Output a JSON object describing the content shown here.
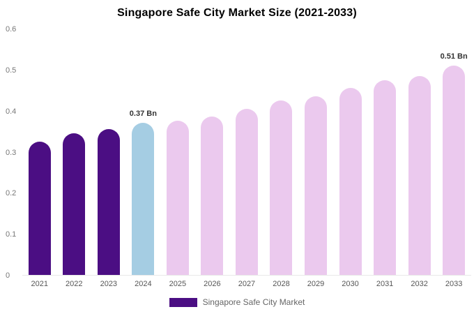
{
  "title": "Singapore Safe City Market Size (2021-2033)",
  "chart_data": {
    "type": "bar",
    "title": "Singapore Safe City Market Size (2021-2033)",
    "xlabel": "",
    "ylabel": "",
    "categories": [
      "2021",
      "2022",
      "2023",
      "2024",
      "2025",
      "2026",
      "2027",
      "2028",
      "2029",
      "2030",
      "2031",
      "2032",
      "2033"
    ],
    "values": [
      0.325,
      0.345,
      0.355,
      0.37,
      0.375,
      0.385,
      0.405,
      0.425,
      0.435,
      0.455,
      0.475,
      0.485,
      0.51
    ],
    "bar_colors": [
      "#4b0e83",
      "#4b0e83",
      "#4b0e83",
      "#a5cde3",
      "#ebc9ee",
      "#ebc9ee",
      "#ebc9ee",
      "#ebc9ee",
      "#ebc9ee",
      "#ebc9ee",
      "#ebc9ee",
      "#ebc9ee",
      "#ebc9ee"
    ],
    "annotations": [
      {
        "category": "2024",
        "text": "0.37 Bn"
      },
      {
        "category": "2033",
        "text": "0.51 Bn"
      }
    ],
    "ylim": [
      0,
      0.6
    ],
    "yticks": [
      "0",
      "0.1",
      "0.2",
      "0.3",
      "0.4",
      "0.5",
      "0.6"
    ],
    "grid": false,
    "legend_position": "bottom",
    "legend": [
      {
        "label": "Singapore Safe City Market",
        "color": "#4b0e83"
      }
    ]
  }
}
